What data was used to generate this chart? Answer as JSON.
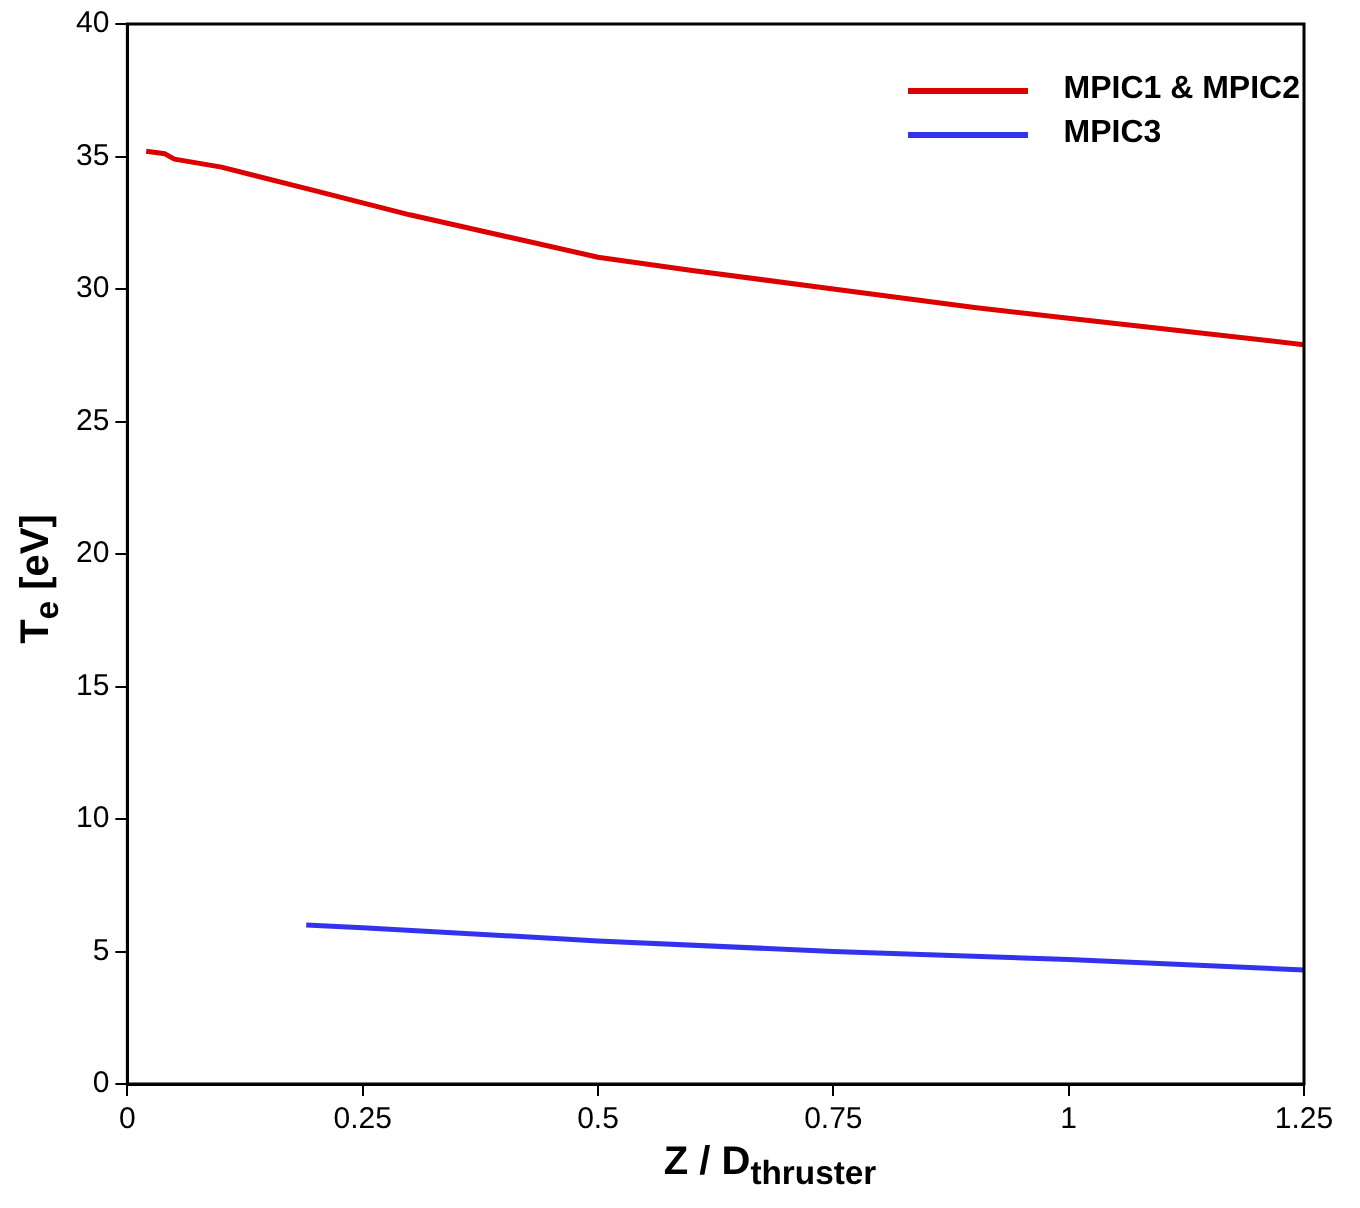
{
  "chart_data": {
    "type": "line",
    "xlabel": "Z / D$_{thruster}$",
    "ylabel": "T$_{e}$ [eV]",
    "xlim": [
      0,
      1.25
    ],
    "xticks": [
      0,
      0.25,
      0.5,
      0.75,
      1,
      1.25
    ],
    "ylim": [
      0,
      40
    ],
    "yticks": [
      0,
      5,
      10,
      15,
      20,
      25,
      30,
      35,
      40
    ],
    "grid": false,
    "legend": "top right",
    "marker": "none",
    "line_style": "solid",
    "series": [
      {
        "name": "MPIC1 & MPIC2",
        "color": "#dd0000",
        "x": [
          0.02,
          0.04,
          0.05,
          0.1,
          0.2,
          0.3,
          0.4,
          0.5,
          0.6,
          0.75,
          0.9,
          1.0,
          1.1,
          1.25
        ],
        "values": [
          35.2,
          35.1,
          34.9,
          34.6,
          33.7,
          32.8,
          32.0,
          31.2,
          30.7,
          30.0,
          29.3,
          28.9,
          28.5,
          27.9
        ]
      },
      {
        "name": "MPIC3",
        "color": "#3333ee",
        "x": [
          0.19,
          0.25,
          0.5,
          0.75,
          1.0,
          1.25
        ],
        "values": [
          6.0,
          5.9,
          5.4,
          5.0,
          4.7,
          4.3
        ]
      }
    ]
  }
}
